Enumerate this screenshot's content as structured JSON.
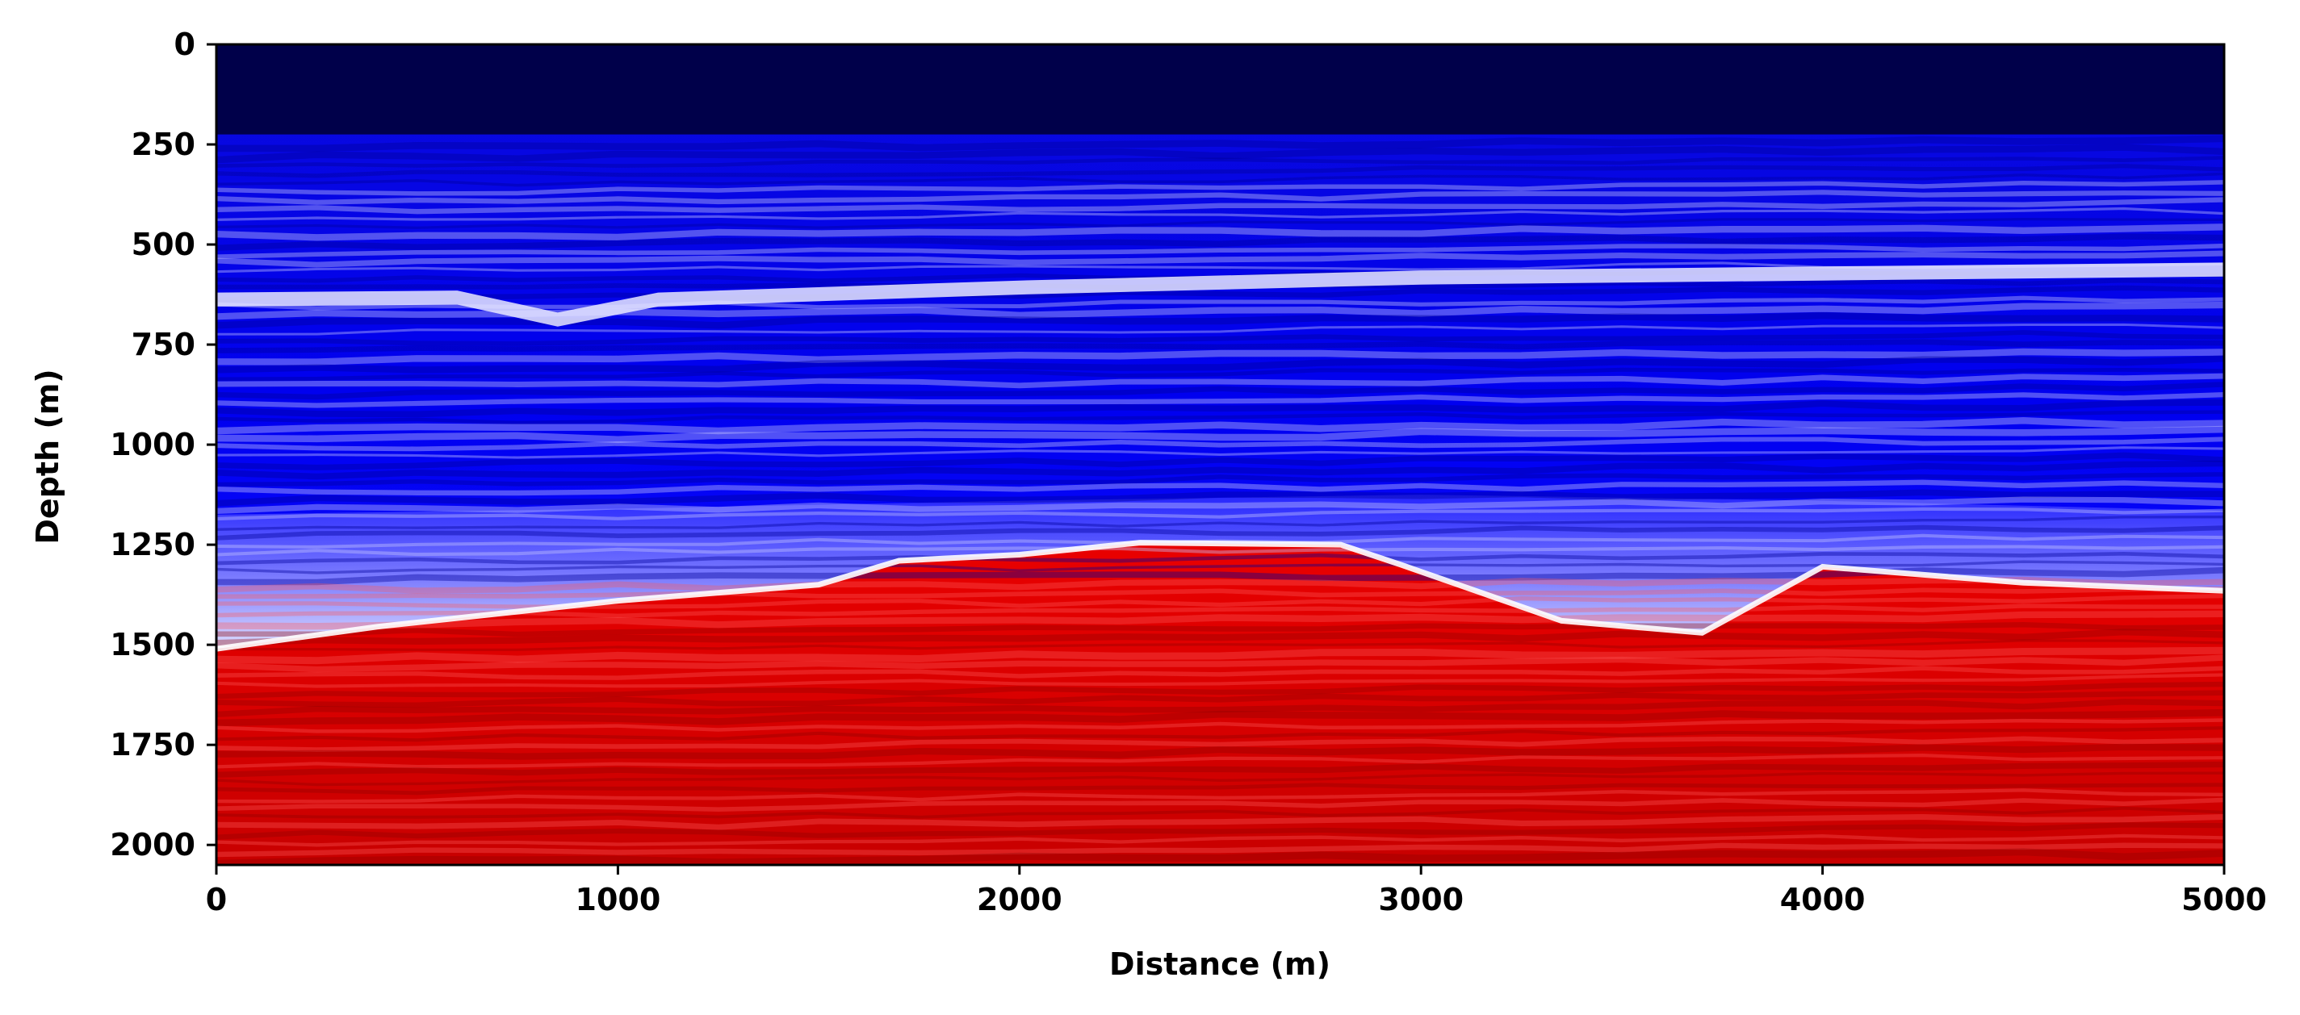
{
  "chart_data": {
    "type": "heatmap",
    "xlabel": "Distance (m)",
    "ylabel": "Depth (m)",
    "xlim": [
      0,
      5000
    ],
    "ylim": [
      2050,
      0
    ],
    "x_ticks": [
      0,
      1000,
      2000,
      3000,
      4000,
      5000
    ],
    "y_ticks": [
      0,
      250,
      500,
      750,
      1000,
      1250,
      1500,
      1750,
      2000
    ],
    "colormap": "seismic",
    "colors": {
      "water": "#00004a",
      "deep_blue": "#0000ff",
      "white": "#ffffff",
      "red": "#ff0000",
      "dark_red": "#8b0000"
    },
    "layers": {
      "water_bottom_depth": [
        [
          0,
          225
        ],
        [
          5000,
          225
        ]
      ],
      "shallow_bright_band_depth": [
        [
          0,
          655
        ],
        [
          600,
          650
        ],
        [
          850,
          705
        ],
        [
          1100,
          655
        ],
        [
          2000,
          625
        ],
        [
          3000,
          600
        ],
        [
          4000,
          590
        ],
        [
          5000,
          580
        ]
      ],
      "top_red_interface_depth": [
        [
          0,
          1510
        ],
        [
          400,
          1455
        ],
        [
          1000,
          1390
        ],
        [
          1500,
          1350
        ],
        [
          1700,
          1290
        ],
        [
          2000,
          1275
        ],
        [
          2300,
          1245
        ],
        [
          2800,
          1250
        ],
        [
          2950,
          1300
        ],
        [
          3350,
          1440
        ],
        [
          3700,
          1470
        ],
        [
          4000,
          1305
        ],
        [
          4500,
          1345
        ],
        [
          5000,
          1365
        ]
      ],
      "high_velocity_shoulder_depth": [
        [
          0,
          1175
        ],
        [
          1000,
          1160
        ],
        [
          2000,
          1140
        ],
        [
          3000,
          1125
        ],
        [
          4000,
          1140
        ],
        [
          5000,
          1165
        ]
      ]
    },
    "grid": false,
    "legend": "none"
  }
}
